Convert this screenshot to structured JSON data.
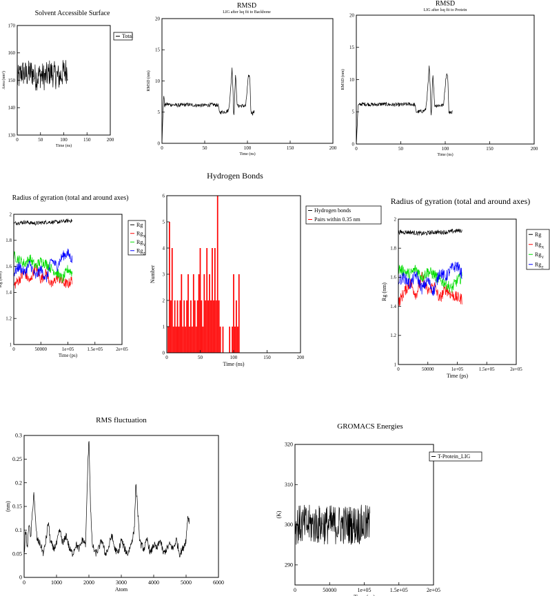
{
  "colors": {
    "black": "#000000",
    "red": "#ff0000",
    "green": "#00dd00",
    "blue": "#0000ff"
  },
  "chart_data": [
    {
      "id": "sasa",
      "type": "line",
      "title": "Solvent Accessible Surface",
      "xlabel": "Time (ns)",
      "ylabel": "Area (nm²)",
      "xlim": [
        0,
        200
      ],
      "ylim": [
        130,
        170
      ],
      "xticks": [
        "0",
        "50",
        "100",
        "150",
        "200"
      ],
      "yticks": [
        "130",
        "140",
        "150",
        "160",
        "170"
      ],
      "legend": [
        {
          "name": "Total",
          "color": "#000000"
        }
      ],
      "legend_position": "right, outside",
      "series": [
        {
          "name": "Total",
          "color": "#000000",
          "x": [
            0,
            10,
            20,
            30,
            40,
            50,
            60,
            70,
            80,
            90,
            100,
            109
          ],
          "y": [
            150,
            153,
            152,
            153,
            151,
            152,
            151,
            153,
            152,
            151,
            153,
            154
          ],
          "fluctuation": 5
        }
      ]
    },
    {
      "id": "rmsd-backbone",
      "type": "line",
      "title": "RMSD",
      "subtitle": "LIG after lsq fit to Backbone",
      "xlabel": "Time (ns)",
      "ylabel": "RMSD (nm)",
      "xlim": [
        0,
        200
      ],
      "ylim": [
        0,
        20
      ],
      "xticks": [
        "0",
        "50",
        "100",
        "150",
        "200"
      ],
      "yticks": [
        "0",
        "5",
        "10",
        "15",
        "20"
      ],
      "series": [
        {
          "color": "#000000",
          "x": [
            0,
            1,
            2,
            3,
            5,
            10,
            20,
            30,
            40,
            50,
            60,
            66,
            67,
            70,
            75,
            78,
            80,
            81,
            82,
            83,
            84,
            85,
            86,
            87,
            88,
            90,
            93,
            95,
            98,
            100,
            101,
            102,
            103,
            104,
            105,
            106,
            107,
            108
          ],
          "y": [
            0,
            4,
            8,
            6,
            6.3,
            6.2,
            6.1,
            6.2,
            6.1,
            6.1,
            6.2,
            6.1,
            5,
            5,
            5.1,
            5.3,
            8,
            10,
            12,
            9,
            4,
            7,
            11,
            9,
            6,
            6,
            6,
            6,
            6,
            9,
            10.5,
            11,
            10,
            5,
            5,
            4.8,
            5,
            5
          ],
          "fluctuation": 0.3
        }
      ]
    },
    {
      "id": "rmsd-protein",
      "type": "line",
      "title": "RMSD",
      "subtitle": "LIG after lsq fit to Protein",
      "xlabel": "Time (ns)",
      "ylabel": "RMSD (nm)",
      "xlim": [
        0,
        200
      ],
      "ylim": [
        0,
        20
      ],
      "xticks": [
        "0",
        "50",
        "100",
        "150",
        "200"
      ],
      "yticks": [
        "0",
        "5",
        "10",
        "15",
        "20"
      ],
      "series": [
        {
          "color": "#000000",
          "x": [
            0,
            1,
            2,
            3,
            5,
            10,
            20,
            30,
            40,
            50,
            60,
            66,
            67,
            70,
            75,
            78,
            80,
            81,
            82,
            83,
            84,
            85,
            86,
            87,
            88,
            90,
            93,
            95,
            98,
            100,
            101,
            102,
            103,
            104,
            105,
            106,
            107,
            108
          ],
          "y": [
            0,
            3,
            6,
            6,
            6.2,
            6.2,
            6.1,
            6.2,
            6.1,
            6.1,
            6.2,
            6.1,
            5,
            5,
            5.1,
            5.3,
            8,
            10,
            12,
            9,
            4,
            7,
            11,
            9,
            6,
            6,
            6,
            6,
            6,
            9,
            10.5,
            11,
            10,
            5,
            5,
            4.8,
            5,
            5
          ],
          "fluctuation": 0.3
        }
      ]
    },
    {
      "id": "rg-left",
      "type": "line",
      "title": "Radius of gyration (total and around axes)",
      "xlabel": "Time (ps)",
      "ylabel": "Rg (nm)",
      "xlim": [
        0,
        200000
      ],
      "ylim": [
        1,
        2
      ],
      "xticks": [
        "0",
        "50000",
        "1e+05",
        "1.5e+05",
        "2e+05"
      ],
      "yticks": [
        "1",
        "1.2",
        "1.4",
        "1.6",
        "1.8",
        "2"
      ],
      "legend": [
        {
          "name": "Rg",
          "sub": "",
          "color": "#000000"
        },
        {
          "name": "Rg",
          "sub": "X",
          "color": "#ff0000"
        },
        {
          "name": "Rg",
          "sub": "Y",
          "color": "#00dd00"
        },
        {
          "name": "Rg",
          "sub": "Z",
          "color": "#0000ff"
        }
      ],
      "legend_position": "right, outside",
      "series": [
        {
          "name": "Rg",
          "color": "#000000",
          "x": [
            0,
            20000,
            40000,
            60000,
            80000,
            100000,
            108000
          ],
          "y": [
            1.93,
            1.94,
            1.93,
            1.94,
            1.94,
            1.95,
            1.95
          ],
          "fluctuation": 0.015
        },
        {
          "name": "RgX",
          "color": "#ff0000",
          "x": [
            0,
            10000,
            20000,
            30000,
            40000,
            50000,
            60000,
            70000,
            80000,
            90000,
            100000,
            108000
          ],
          "y": [
            1.45,
            1.5,
            1.55,
            1.48,
            1.6,
            1.5,
            1.55,
            1.45,
            1.52,
            1.48,
            1.46,
            1.5
          ],
          "fluctuation": 0.04
        },
        {
          "name": "RgY",
          "color": "#00dd00",
          "x": [
            0,
            10000,
            20000,
            30000,
            40000,
            50000,
            60000,
            70000,
            80000,
            90000,
            100000,
            108000
          ],
          "y": [
            1.68,
            1.65,
            1.62,
            1.66,
            1.6,
            1.64,
            1.62,
            1.58,
            1.55,
            1.5,
            1.58,
            1.55
          ],
          "fluctuation": 0.04
        },
        {
          "name": "RgZ",
          "color": "#0000ff",
          "x": [
            0,
            10000,
            20000,
            30000,
            40000,
            50000,
            60000,
            70000,
            80000,
            90000,
            100000,
            108000
          ],
          "y": [
            1.55,
            1.6,
            1.55,
            1.62,
            1.52,
            1.58,
            1.5,
            1.65,
            1.6,
            1.68,
            1.7,
            1.65
          ],
          "fluctuation": 0.04
        }
      ]
    },
    {
      "id": "hbonds",
      "type": "bar",
      "title": "Hydrogen Bonds",
      "xlabel": "Time (ns)",
      "ylabel": "Number",
      "xlim": [
        0,
        200
      ],
      "ylim": [
        0,
        6
      ],
      "xticks": [
        "0",
        "50",
        "100",
        "150",
        "200"
      ],
      "yticks": [
        "0",
        "1",
        "2",
        "3",
        "4",
        "5",
        "6"
      ],
      "legend": [
        {
          "name": "Hydrogen bonds",
          "color": "#000000"
        },
        {
          "name": "Pairs within 0.35 nm",
          "color": "#ff0000"
        }
      ],
      "legend_position": "right, outside",
      "series": [
        {
          "name": "Pairs within 0.35 nm",
          "color": "#ff0000",
          "x": [
            2,
            4,
            6,
            8,
            10,
            12,
            14,
            16,
            18,
            20,
            22,
            24,
            26,
            28,
            30,
            32,
            34,
            36,
            38,
            40,
            42,
            44,
            46,
            48,
            50,
            52,
            54,
            56,
            58,
            60,
            62,
            64,
            66,
            68,
            70,
            72,
            74,
            76,
            78,
            80,
            82,
            84,
            86,
            88,
            90,
            92,
            94,
            96,
            98,
            100,
            102,
            104,
            106,
            108
          ],
          "y": [
            1,
            5,
            2,
            4,
            1,
            2,
            1,
            2,
            1,
            2,
            3,
            1,
            2,
            1,
            2,
            3,
            1,
            2,
            1,
            3,
            2,
            1,
            2,
            3,
            4,
            2,
            1,
            3,
            2,
            4,
            2,
            3,
            2,
            4,
            2,
            4,
            2,
            6,
            2,
            1,
            0,
            1,
            0,
            0,
            0,
            0,
            1,
            0,
            1,
            3,
            1,
            2,
            1,
            3
          ]
        }
      ]
    },
    {
      "id": "rg-right",
      "type": "line",
      "title": "Radius of gyration (total and around axes)",
      "xlabel": "Time (ps)",
      "ylabel": "Rg (nm)",
      "xlim": [
        0,
        200000
      ],
      "ylim": [
        1,
        2
      ],
      "xticks": [
        "0",
        "50000",
        "1e+05",
        "1.5e+05",
        "2e+05"
      ],
      "yticks": [
        "1",
        "1.2",
        "1.4",
        "1.6",
        "1.8",
        "2"
      ],
      "legend": [
        {
          "name": "Rg",
          "sub": "",
          "color": "#000000"
        },
        {
          "name": "Rg",
          "sub": "X",
          "color": "#ff0000"
        },
        {
          "name": "Rg",
          "sub": "Y",
          "color": "#00dd00"
        },
        {
          "name": "Rg",
          "sub": "Z",
          "color": "#0000ff"
        }
      ],
      "legend_position": "right, outside",
      "series": [
        {
          "name": "Rg",
          "color": "#000000",
          "x": [
            0,
            20000,
            40000,
            60000,
            80000,
            100000,
            108000
          ],
          "y": [
            1.91,
            1.91,
            1.9,
            1.91,
            1.91,
            1.92,
            1.92
          ],
          "fluctuation": 0.015
        },
        {
          "name": "RgX",
          "color": "#ff0000",
          "x": [
            0,
            10000,
            20000,
            30000,
            40000,
            50000,
            60000,
            70000,
            80000,
            90000,
            100000,
            108000
          ],
          "y": [
            1.42,
            1.5,
            1.56,
            1.48,
            1.6,
            1.5,
            1.55,
            1.45,
            1.52,
            1.48,
            1.46,
            1.45
          ],
          "fluctuation": 0.04
        },
        {
          "name": "RgY",
          "color": "#00dd00",
          "x": [
            0,
            10000,
            20000,
            30000,
            40000,
            50000,
            60000,
            70000,
            80000,
            90000,
            100000,
            108000
          ],
          "y": [
            1.66,
            1.64,
            1.62,
            1.66,
            1.6,
            1.64,
            1.62,
            1.58,
            1.56,
            1.52,
            1.58,
            1.6
          ],
          "fluctuation": 0.04
        },
        {
          "name": "RgZ",
          "color": "#0000ff",
          "x": [
            0,
            10000,
            20000,
            30000,
            40000,
            50000,
            60000,
            70000,
            80000,
            90000,
            100000,
            108000
          ],
          "y": [
            1.58,
            1.6,
            1.55,
            1.62,
            1.52,
            1.58,
            1.5,
            1.64,
            1.6,
            1.66,
            1.68,
            1.62
          ],
          "fluctuation": 0.04
        }
      ]
    },
    {
      "id": "rmsf",
      "type": "line",
      "title": "RMS fluctuation",
      "xlabel": "Atom",
      "ylabel": "(nm)",
      "xlim": [
        0,
        6000
      ],
      "ylim": [
        0,
        0.3
      ],
      "xticks": [
        "0",
        "1000",
        "2000",
        "3000",
        "4000",
        "5000",
        "6000"
      ],
      "yticks": [
        "0",
        "0.05",
        "0.1",
        "0.15",
        "0.2",
        "0.25",
        "0.3"
      ],
      "series": [
        {
          "color": "#000000",
          "x": [
            0,
            50,
            100,
            150,
            200,
            250,
            300,
            350,
            400,
            500,
            600,
            700,
            750,
            800,
            900,
            1000,
            1100,
            1200,
            1300,
            1400,
            1500,
            1600,
            1700,
            1800,
            1900,
            1950,
            2000,
            2050,
            2100,
            2200,
            2300,
            2400,
            2500,
            2600,
            2700,
            2800,
            2900,
            3000,
            3100,
            3200,
            3300,
            3400,
            3450,
            3500,
            3550,
            3600,
            3700,
            3800,
            3900,
            4000,
            4100,
            4200,
            4300,
            4400,
            4500,
            4600,
            4700,
            4800,
            4900,
            5000,
            5050,
            5100
          ],
          "y": [
            0.05,
            0.1,
            0.06,
            0.12,
            0.08,
            0.13,
            0.18,
            0.12,
            0.08,
            0.07,
            0.05,
            0.09,
            0.12,
            0.08,
            0.06,
            0.07,
            0.1,
            0.07,
            0.09,
            0.06,
            0.05,
            0.07,
            0.06,
            0.08,
            0.07,
            0.2,
            0.3,
            0.15,
            0.07,
            0.05,
            0.06,
            0.08,
            0.05,
            0.06,
            0.09,
            0.06,
            0.05,
            0.08,
            0.06,
            0.05,
            0.07,
            0.1,
            0.2,
            0.15,
            0.09,
            0.07,
            0.06,
            0.08,
            0.05,
            0.07,
            0.06,
            0.08,
            0.05,
            0.06,
            0.07,
            0.06,
            0.08,
            0.05,
            0.06,
            0.08,
            0.13,
            0.12
          ],
          "fluctuation": 0.008
        }
      ]
    },
    {
      "id": "energies",
      "type": "line",
      "title": "GROMACS Energies",
      "xlabel": "Time (ps)",
      "ylabel": "(K)",
      "xlim": [
        0,
        200000
      ],
      "ylim": [
        285,
        320
      ],
      "xticks": [
        "0",
        "50000",
        "1e+05",
        "1.5e+05",
        "2e+05"
      ],
      "yticks": [
        "290",
        "300",
        "310",
        "320"
      ],
      "legend": [
        {
          "name": "T-Protein_LIG",
          "color": "#000000"
        }
      ],
      "legend_position": "right, outside",
      "series": [
        {
          "name": "T-Protein_LIG",
          "color": "#000000",
          "x": [
            0,
            108000
          ],
          "y": [
            300,
            300
          ],
          "fluctuation": 5
        }
      ]
    }
  ]
}
